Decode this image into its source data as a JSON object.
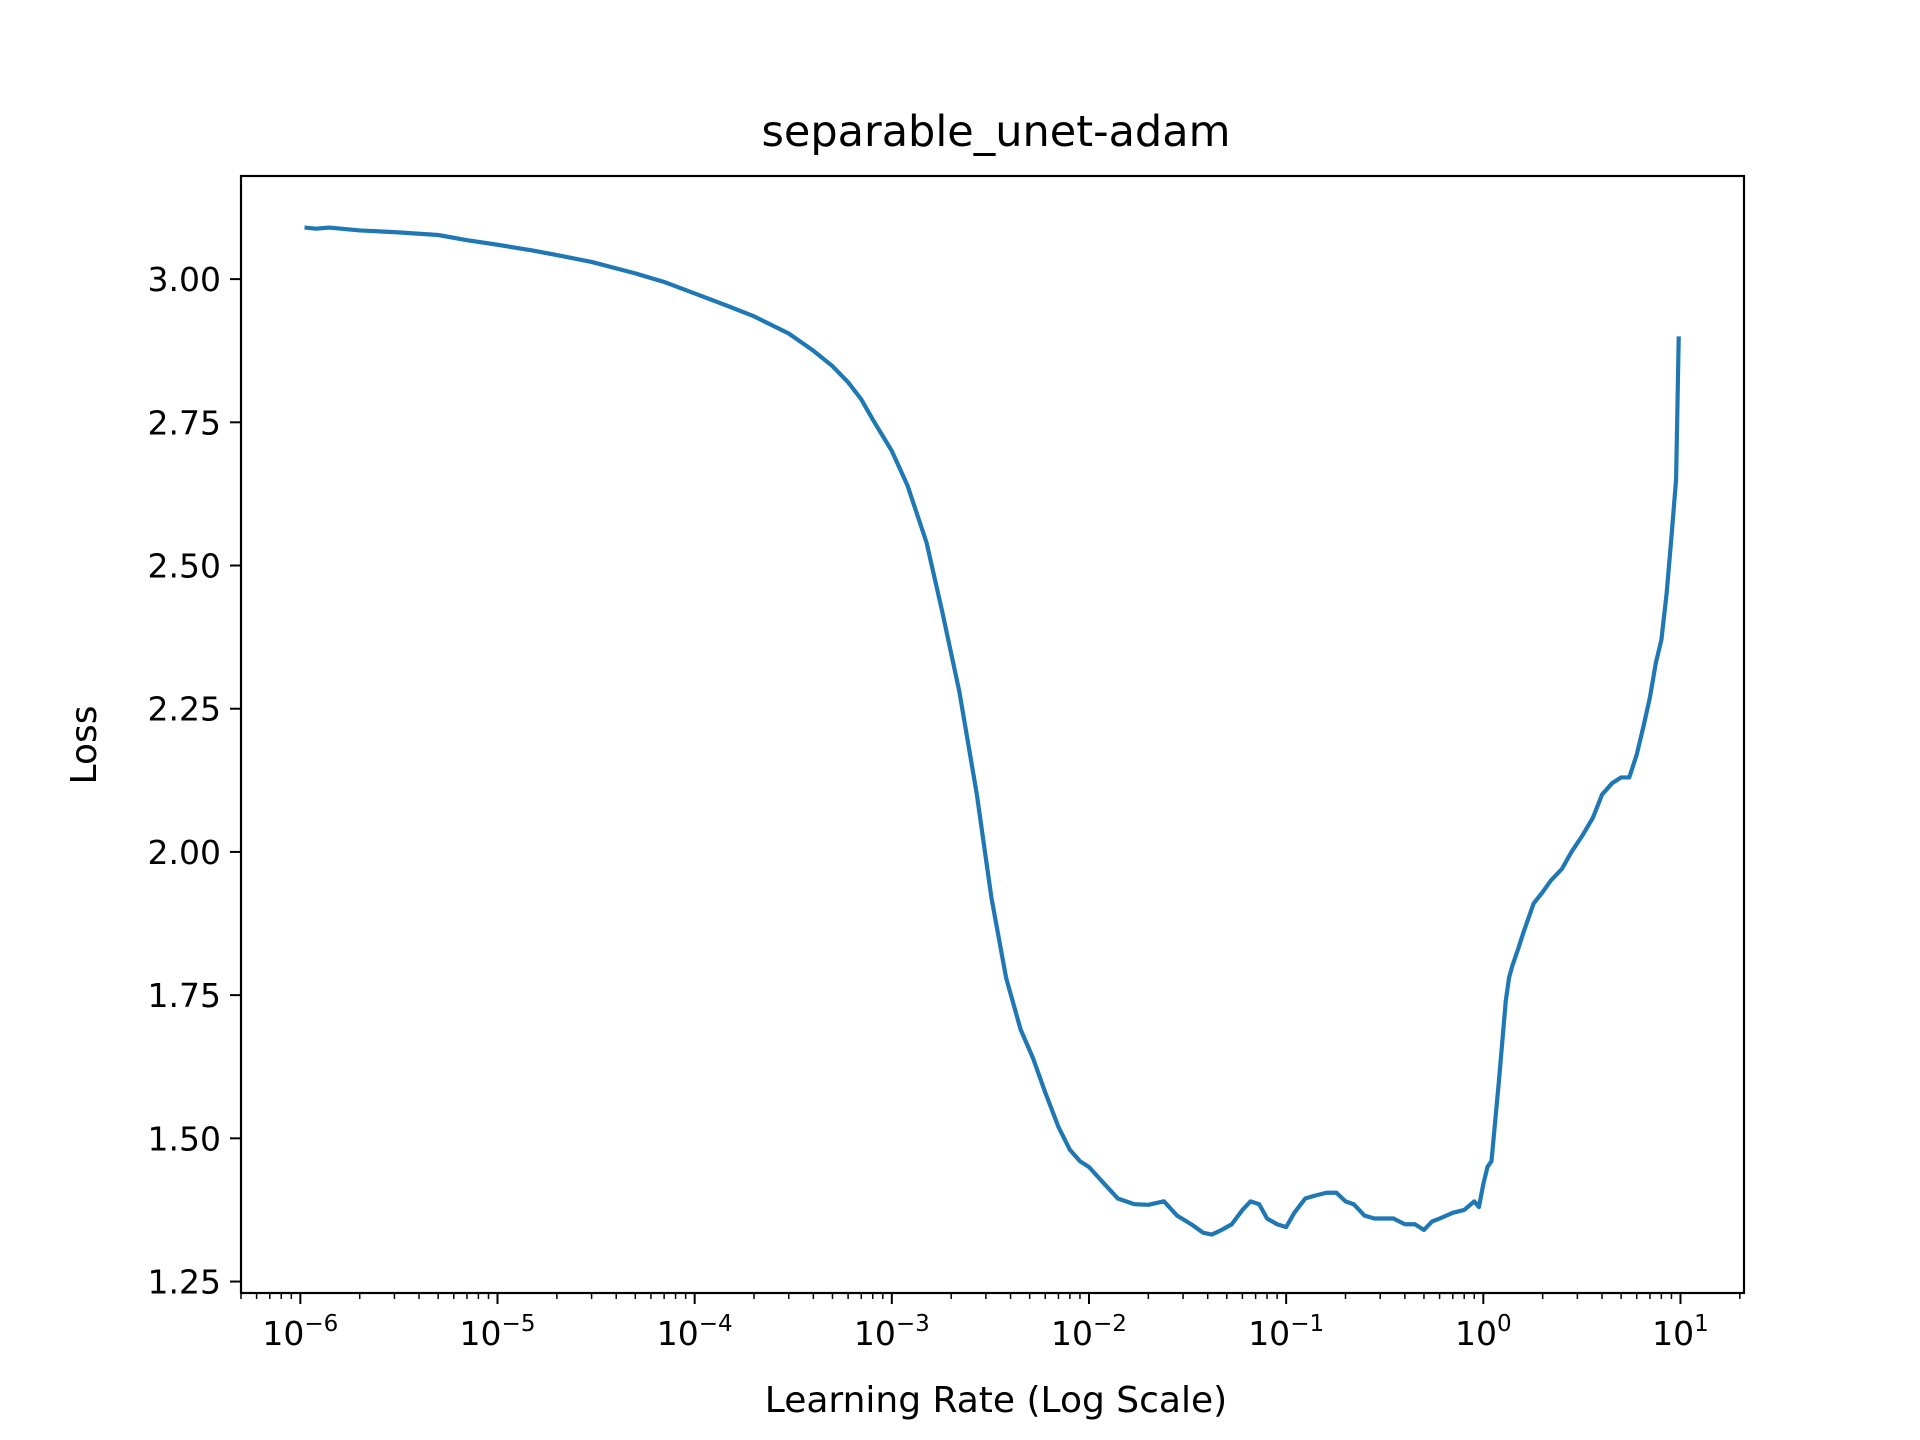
{
  "chart_data": {
    "type": "line",
    "title": "separable_unet-adam",
    "xlabel": "Learning Rate (Log Scale)",
    "ylabel": "Loss",
    "x_scale": "log",
    "xlim": [
      5e-07,
      21
    ],
    "ylim": [
      1.23,
      3.18
    ],
    "x_ticks": [
      {
        "value": 1e-06,
        "base": "10",
        "exp": "−6"
      },
      {
        "value": 1e-05,
        "base": "10",
        "exp": "−5"
      },
      {
        "value": 0.0001,
        "base": "10",
        "exp": "−4"
      },
      {
        "value": 0.001,
        "base": "10",
        "exp": "−3"
      },
      {
        "value": 0.01,
        "base": "10",
        "exp": "−2"
      },
      {
        "value": 0.1,
        "base": "10",
        "exp": "−1"
      },
      {
        "value": 1,
        "base": "10",
        "exp": "0"
      },
      {
        "value": 10,
        "base": "10",
        "exp": "1"
      }
    ],
    "y_ticks": [
      {
        "value": 1.25,
        "label": "1.25"
      },
      {
        "value": 1.5,
        "label": "1.50"
      },
      {
        "value": 1.75,
        "label": "1.75"
      },
      {
        "value": 2.0,
        "label": "2.00"
      },
      {
        "value": 2.25,
        "label": "2.25"
      },
      {
        "value": 2.5,
        "label": "2.50"
      },
      {
        "value": 2.75,
        "label": "2.75"
      },
      {
        "value": 3.0,
        "label": "3.00"
      }
    ],
    "grid": false,
    "legend": "none",
    "series": [
      {
        "color": "#1f77b4",
        "x": [
          1.05e-06,
          1.2e-06,
          1.4e-06,
          2e-06,
          3e-06,
          5e-06,
          7e-06,
          1e-05,
          1.5e-05,
          2e-05,
          3e-05,
          5e-05,
          7e-05,
          0.0001,
          0.00015,
          0.0002,
          0.0003,
          0.0004,
          0.0005,
          0.0006,
          0.0007,
          0.0008,
          0.001,
          0.0012,
          0.0015,
          0.0018,
          0.0022,
          0.0027,
          0.0032,
          0.0038,
          0.0045,
          0.0052,
          0.006,
          0.007,
          0.008,
          0.009,
          0.01,
          0.012,
          0.014,
          0.017,
          0.02,
          0.024,
          0.028,
          0.033,
          0.038,
          0.042,
          0.047,
          0.053,
          0.06,
          0.066,
          0.073,
          0.08,
          0.09,
          0.1,
          0.11,
          0.125,
          0.14,
          0.16,
          0.18,
          0.2,
          0.22,
          0.25,
          0.28,
          0.31,
          0.35,
          0.4,
          0.45,
          0.5,
          0.55,
          0.6,
          0.7,
          0.8,
          0.9,
          0.95,
          1.0,
          1.05,
          1.1,
          1.2,
          1.3,
          1.35,
          1.4,
          1.5,
          1.6,
          1.8,
          2.0,
          2.2,
          2.5,
          2.8,
          3.2,
          3.6,
          4.0,
          4.5,
          5.0,
          5.5,
          6.0,
          6.5,
          7.0,
          7.5,
          8.0,
          8.5,
          9.0,
          9.5,
          9.8
        ],
        "y": [
          3.09,
          3.088,
          3.09,
          3.085,
          3.082,
          3.077,
          3.068,
          3.06,
          3.05,
          3.042,
          3.03,
          3.01,
          2.995,
          2.975,
          2.952,
          2.935,
          2.905,
          2.875,
          2.848,
          2.82,
          2.79,
          2.755,
          2.7,
          2.64,
          2.54,
          2.42,
          2.28,
          2.1,
          1.92,
          1.78,
          1.69,
          1.64,
          1.58,
          1.52,
          1.48,
          1.46,
          1.45,
          1.42,
          1.395,
          1.385,
          1.384,
          1.39,
          1.365,
          1.35,
          1.335,
          1.332,
          1.34,
          1.35,
          1.375,
          1.39,
          1.385,
          1.36,
          1.35,
          1.345,
          1.37,
          1.395,
          1.4,
          1.405,
          1.405,
          1.39,
          1.385,
          1.365,
          1.36,
          1.36,
          1.36,
          1.35,
          1.35,
          1.34,
          1.355,
          1.36,
          1.37,
          1.375,
          1.39,
          1.38,
          1.42,
          1.45,
          1.46,
          1.6,
          1.74,
          1.78,
          1.8,
          1.83,
          1.86,
          1.91,
          1.93,
          1.95,
          1.97,
          2.0,
          2.03,
          2.06,
          2.1,
          2.12,
          2.13,
          2.13,
          2.17,
          2.22,
          2.27,
          2.33,
          2.37,
          2.45,
          2.55,
          2.65,
          2.9
        ]
      }
    ]
  }
}
